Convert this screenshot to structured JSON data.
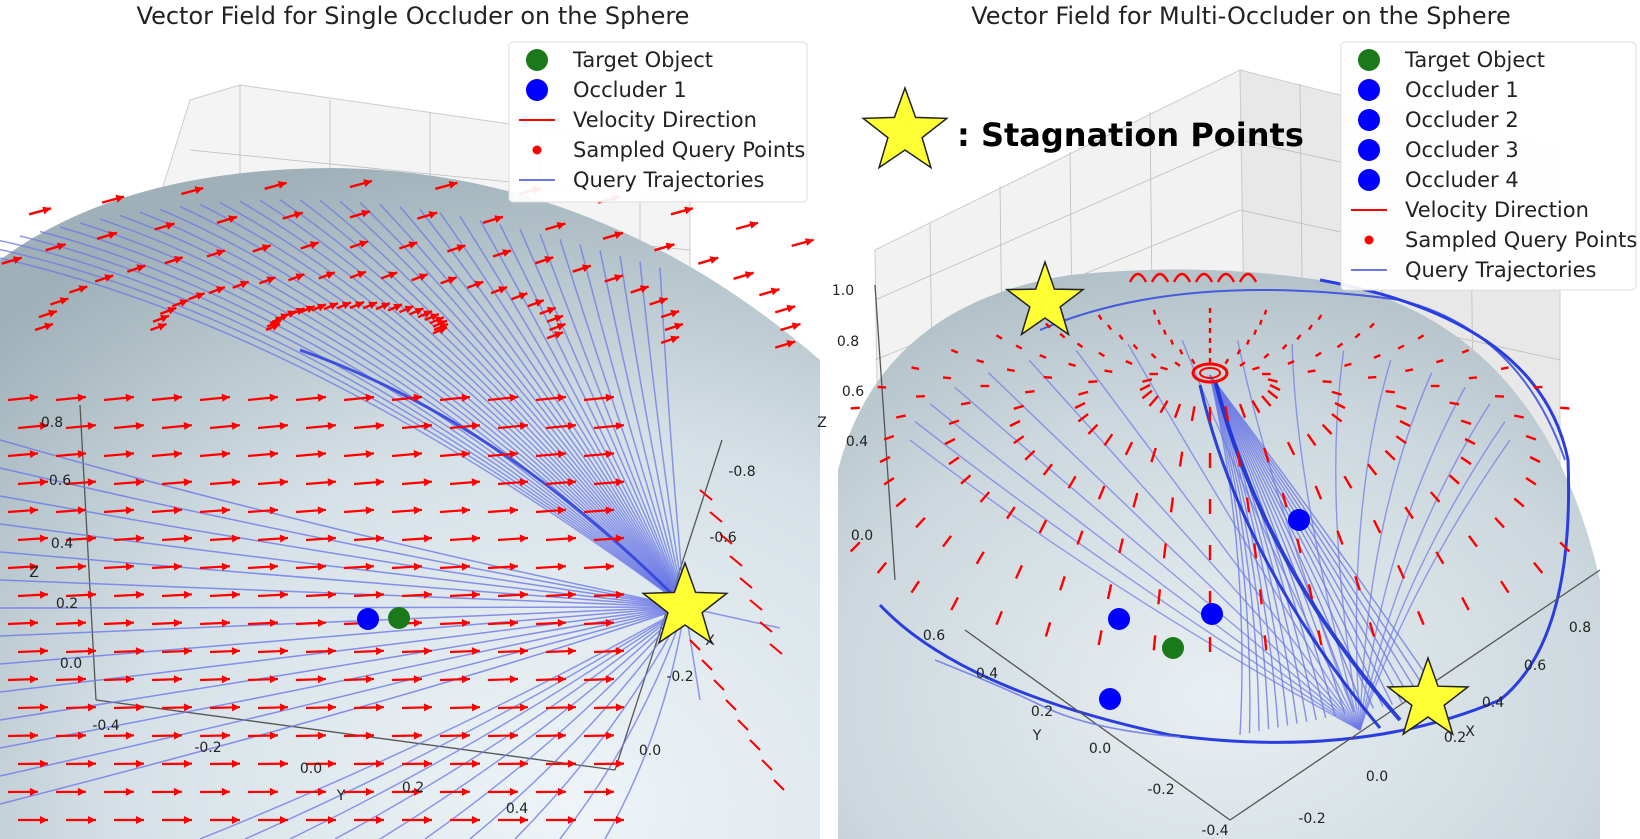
{
  "chart_data": [
    {
      "type": "scatter",
      "title": "Vector Field for Single Occluder on the Sphere",
      "axes": {
        "x": {
          "label": "X",
          "ticks": [
            "-0.2",
            "-0.6",
            "-0.8"
          ]
        },
        "y": {
          "label": "Y",
          "ticks": [
            "-0.4",
            "-0.2",
            "0.0",
            "0.2",
            "0.4"
          ]
        },
        "z": {
          "label": "Z",
          "ticks": [
            "0.0",
            "0.2",
            "0.4",
            "0.6",
            "0.8"
          ]
        },
        "extra_ticks": [
          "0.0"
        ]
      },
      "legend": {
        "placement": "top-right",
        "entries": [
          {
            "label": "Target Object",
            "marker": "circle",
            "color": "#1a7a1a"
          },
          {
            "label": "Occluder 1",
            "marker": "circle",
            "color": "#0000ff"
          },
          {
            "label": "Velocity Direction",
            "marker": "line",
            "color": "#ff0000"
          },
          {
            "label": "Sampled Query Points",
            "marker": "dot",
            "color": "#ff0000"
          },
          {
            "label": "Query Trajectories",
            "marker": "line",
            "color": "#6b78e6"
          }
        ]
      },
      "objects": [
        {
          "name": "Target Object",
          "color": "#1a7a1a"
        },
        {
          "name": "Occluder 1",
          "color": "#0000ff"
        }
      ],
      "stagnation_points": 1,
      "colors": {
        "velocity": "#ff0000",
        "trajectory": "#6b78e6",
        "sphere": "#c4d2da",
        "star": "#ffff33"
      }
    },
    {
      "type": "scatter",
      "title": "Vector Field for Multi-Occluder on the Sphere",
      "axes": {
        "x": {
          "label": "X",
          "ticks": [
            "0.2",
            "0.4",
            "0.6",
            "0.8"
          ]
        },
        "y": {
          "label": "Y",
          "ticks": [
            "-0.4",
            "-0.2",
            "0.0",
            "0.2",
            "0.4",
            "0.6"
          ]
        },
        "z": {
          "label": "Z",
          "ticks": [
            "0.0",
            "0.4",
            "0.6",
            "0.8",
            "1.0"
          ]
        },
        "extra_ticks": [
          "-0.2",
          "0.0"
        ]
      },
      "legend": {
        "placement": "top-right",
        "entries": [
          {
            "label": "Target Object",
            "marker": "circle",
            "color": "#1a7a1a"
          },
          {
            "label": "Occluder 1",
            "marker": "circle",
            "color": "#0000ff"
          },
          {
            "label": "Occluder 2",
            "marker": "circle",
            "color": "#0000ff"
          },
          {
            "label": "Occluder 3",
            "marker": "circle",
            "color": "#0000ff"
          },
          {
            "label": "Occluder 4",
            "marker": "circle",
            "color": "#0000ff"
          },
          {
            "label": "Velocity Direction",
            "marker": "line",
            "color": "#ff0000"
          },
          {
            "label": "Sampled Query Points",
            "marker": "dot",
            "color": "#ff0000"
          },
          {
            "label": "Query Trajectories",
            "marker": "line",
            "color": "#6b78e6"
          }
        ]
      },
      "objects": [
        {
          "name": "Target Object",
          "color": "#1a7a1a"
        },
        {
          "name": "Occluder 1",
          "color": "#0000ff"
        },
        {
          "name": "Occluder 2",
          "color": "#0000ff"
        },
        {
          "name": "Occluder 3",
          "color": "#0000ff"
        },
        {
          "name": "Occluder 4",
          "color": "#0000ff"
        }
      ],
      "stagnation_points": 2,
      "annotation": ": Stagnation Points",
      "colors": {
        "velocity": "#ff0000",
        "trajectory": "#6b78e6",
        "sphere": "#c4d2da",
        "star": "#ffff33"
      }
    }
  ]
}
